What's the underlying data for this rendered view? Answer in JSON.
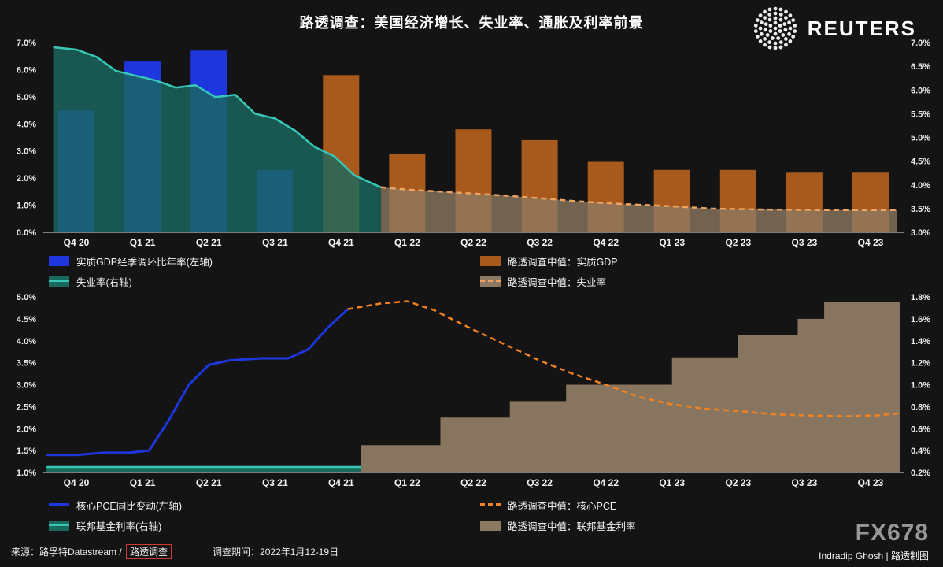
{
  "header": {
    "title": "路透调查：美国经济增长、失业率、通胀及利率前景",
    "logo_text": "REUTERS"
  },
  "colors": {
    "background": "#141414",
    "blue": "#1e36dd",
    "orange_bar": "#a85a1d",
    "teal_line": "#38c7b6",
    "teal_fill": "#19695f",
    "orange_dash": "#f5821f",
    "tan_fill": "#8d7a63",
    "tan_dash": "#f0a25f",
    "axis_line": "#bdbdbd",
    "brand_gray": "#979797",
    "badge_red": "#cf3a2a"
  },
  "chart_data": [
    {
      "id": "gdp-unemployment",
      "type": "bar",
      "grid": false,
      "legend_position": "bottom",
      "categories": [
        "Q4 20",
        "Q1 21",
        "Q2 21",
        "Q3 21",
        "Q4 21",
        "Q1 22",
        "Q2 22",
        "Q3 22",
        "Q4 22",
        "Q1 23",
        "Q2 23",
        "Q3 23",
        "Q4 23"
      ],
      "left_axis": {
        "min": 0,
        "max": 7,
        "ticks": [
          {
            "label": "7.0%",
            "value": 7
          },
          {
            "label": "6.0%",
            "value": 6
          },
          {
            "label": "5.0%",
            "value": 5
          },
          {
            "label": "4.0%",
            "value": 4
          },
          {
            "label": "3.0%",
            "value": 3
          },
          {
            "label": "2.0%",
            "value": 2
          },
          {
            "label": "1.0%",
            "value": 1
          },
          {
            "label": "0.0%",
            "value": 0
          }
        ]
      },
      "right_axis": {
        "min": 3,
        "max": 7,
        "ticks": [
          {
            "label": "7.0%",
            "value": 7
          },
          {
            "label": "6.5%",
            "value": 6.5
          },
          {
            "label": "6.0%",
            "value": 6
          },
          {
            "label": "5.5%",
            "value": 5.5
          },
          {
            "label": "5.0%",
            "value": 5
          },
          {
            "label": "4.5%",
            "value": 4.5
          },
          {
            "label": "4.0%",
            "value": 4
          },
          {
            "label": "3.5%",
            "value": 3.5
          },
          {
            "label": "3.0%",
            "value": 3
          }
        ]
      },
      "series": [
        {
          "id": "gdp-actual",
          "name": "实质GDP经季调环比年率(左轴)",
          "kind": "bar",
          "axis": "left",
          "color": "#1e36dd",
          "values": [
            4.5,
            6.3,
            6.7,
            2.3,
            null,
            null,
            null,
            null,
            null,
            null,
            null,
            null,
            null
          ]
        },
        {
          "id": "gdp-forecast",
          "name": "路透调查中值：实质GDP",
          "kind": "bar",
          "axis": "left",
          "color": "#a85a1d",
          "values": [
            null,
            null,
            null,
            null,
            5.8,
            2.9,
            3.8,
            3.4,
            2.6,
            2.3,
            2.3,
            2.2,
            2.2
          ]
        },
        {
          "id": "unemployment-actual",
          "name": "失业率(右轴)",
          "kind": "area-line",
          "axis": "right",
          "color": "#38c7b6",
          "fill": "#19695f",
          "fill_opacity": 0.8,
          "points": [
            [
              -0.35,
              6.9
            ],
            [
              0,
              6.85
            ],
            [
              0.3,
              6.7
            ],
            [
              0.6,
              6.4
            ],
            [
              0.9,
              6.3
            ],
            [
              1.2,
              6.2
            ],
            [
              1.5,
              6.05
            ],
            [
              1.8,
              6.1
            ],
            [
              2.1,
              5.85
            ],
            [
              2.4,
              5.9
            ],
            [
              2.7,
              5.5
            ],
            [
              3,
              5.4
            ],
            [
              3.3,
              5.15
            ],
            [
              3.6,
              4.8
            ],
            [
              3.9,
              4.6
            ],
            [
              4.2,
              4.2
            ],
            [
              4.6,
              3.95
            ]
          ]
        },
        {
          "id": "unemployment-forecast",
          "name": "路透调查中值：失业率",
          "kind": "area-dash",
          "axis": "right",
          "color": "#f0a25f",
          "fill": "#8d7a63",
          "fill_opacity": 0.78,
          "points": [
            [
              4.6,
              3.95
            ],
            [
              5,
              3.9
            ],
            [
              5.6,
              3.85
            ],
            [
              6.2,
              3.8
            ],
            [
              7,
              3.72
            ],
            [
              7.6,
              3.65
            ],
            [
              8.2,
              3.6
            ],
            [
              9,
              3.55
            ],
            [
              9.6,
              3.5
            ],
            [
              10.4,
              3.48
            ],
            [
              11.2,
              3.47
            ],
            [
              12.4,
              3.47
            ]
          ]
        }
      ]
    },
    {
      "id": "pce-fedfunds",
      "type": "line",
      "grid": false,
      "legend_position": "bottom",
      "categories": [
        "Q4 20",
        "Q1 21",
        "Q2 21",
        "Q3 21",
        "Q4 21",
        "Q1 22",
        "Q2 22",
        "Q3 22",
        "Q4 22",
        "Q1 23",
        "Q2 23",
        "Q3 23",
        "Q4 23"
      ],
      "left_axis": {
        "min": 1,
        "max": 5,
        "ticks": [
          {
            "label": "5.0%",
            "value": 5
          },
          {
            "label": "4.5%",
            "value": 4.5
          },
          {
            "label": "4.0%",
            "value": 4
          },
          {
            "label": "3.5%",
            "value": 3.5
          },
          {
            "label": "3.0%",
            "value": 3
          },
          {
            "label": "2.5%",
            "value": 2.5
          },
          {
            "label": "2.0%",
            "value": 2
          },
          {
            "label": "1.5%",
            "value": 1.5
          },
          {
            "label": "1.0%",
            "value": 1
          }
        ]
      },
      "right_axis": {
        "min": 0.2,
        "max": 1.8,
        "ticks": [
          {
            "label": "1.8%",
            "value": 1.8
          },
          {
            "label": "1.6%",
            "value": 1.6
          },
          {
            "label": "1.4%",
            "value": 1.4
          },
          {
            "label": "1.2%",
            "value": 1.2
          },
          {
            "label": "1.0%",
            "value": 1.0
          },
          {
            "label": "0.8%",
            "value": 0.8
          },
          {
            "label": "0.6%",
            "value": 0.6
          },
          {
            "label": "0.4%",
            "value": 0.4
          },
          {
            "label": "0.2%",
            "value": 0.2
          }
        ]
      },
      "series": [
        {
          "id": "fed-funds-forecast",
          "name": "路透调查中值：联邦基金利率",
          "kind": "area",
          "axis": "right",
          "color": "#8d7a63",
          "fill": "#8d7a63",
          "fill_opacity": 0.95,
          "points": [
            [
              4.3,
              0.45
            ],
            [
              5.5,
              0.45
            ],
            [
              5.5,
              0.7
            ],
            [
              6.55,
              0.7
            ],
            [
              6.55,
              0.85
            ],
            [
              7.4,
              0.85
            ],
            [
              7.4,
              1.0
            ],
            [
              9.0,
              1.0
            ],
            [
              9.0,
              1.25
            ],
            [
              10.0,
              1.25
            ],
            [
              10.0,
              1.45
            ],
            [
              10.9,
              1.45
            ],
            [
              10.9,
              1.6
            ],
            [
              11.3,
              1.6
            ],
            [
              11.3,
              1.75
            ],
            [
              12.45,
              1.75
            ]
          ]
        },
        {
          "id": "fed-funds-actual",
          "name": "联邦基金利率(右轴)",
          "kind": "area-line",
          "axis": "right",
          "color": "#38c7b6",
          "fill": "#19695f",
          "fill_opacity": 1,
          "points": [
            [
              -0.45,
              0.25
            ],
            [
              4.3,
              0.25
            ]
          ]
        },
        {
          "id": "core-pce-actual",
          "name": "核心PCE同比变动(左轴)",
          "kind": "line",
          "axis": "left",
          "color": "#1e36dd",
          "points": [
            [
              -0.45,
              1.4
            ],
            [
              0,
              1.4
            ],
            [
              0.4,
              1.45
            ],
            [
              0.8,
              1.45
            ],
            [
              1.1,
              1.5
            ],
            [
              1.4,
              2.2
            ],
            [
              1.7,
              3.0
            ],
            [
              2,
              3.45
            ],
            [
              2.3,
              3.55
            ],
            [
              2.8,
              3.6
            ],
            [
              3.2,
              3.6
            ],
            [
              3.5,
              3.8
            ],
            [
              3.8,
              4.3
            ],
            [
              4.1,
              4.72
            ]
          ]
        },
        {
          "id": "core-pce-forecast",
          "name": "路透调查中值：核心PCE",
          "kind": "dash-line",
          "axis": "left",
          "color": "#f5821f",
          "points": [
            [
              4.1,
              4.72
            ],
            [
              4.6,
              4.85
            ],
            [
              5,
              4.9
            ],
            [
              5.4,
              4.7
            ],
            [
              6,
              4.25
            ],
            [
              6.5,
              3.9
            ],
            [
              7,
              3.55
            ],
            [
              7.5,
              3.25
            ],
            [
              8,
              3.0
            ],
            [
              8.5,
              2.72
            ],
            [
              9,
              2.55
            ],
            [
              9.5,
              2.45
            ],
            [
              10,
              2.4
            ],
            [
              10.5,
              2.33
            ],
            [
              11,
              2.3
            ],
            [
              11.6,
              2.28
            ],
            [
              12.1,
              2.3
            ],
            [
              12.45,
              2.35
            ]
          ]
        }
      ]
    }
  ],
  "legend_top": {
    "items": [
      {
        "label": "实质GDP经季调环比年率(左轴)"
      },
      {
        "label": "路透调查中值：实质GDP"
      },
      {
        "label": "失业率(右轴)"
      },
      {
        "label": "路透调查中值：失业率"
      }
    ]
  },
  "legend_bottom": {
    "items": [
      {
        "label": "核心PCE同比变动(左轴)"
      },
      {
        "label": "路透调查中值：核心PCE"
      },
      {
        "label": "联邦基金利率(右轴)"
      },
      {
        "label": "路透调查中值：联邦基金利率"
      }
    ]
  },
  "footer": {
    "source_prefix": "来源：路孚特Datastream / ",
    "source_badge": "路透调查",
    "period": "调查期间：2022年1月12-19日",
    "brand": "FX678",
    "credit": "Indradip Ghosh | 路透制图"
  }
}
